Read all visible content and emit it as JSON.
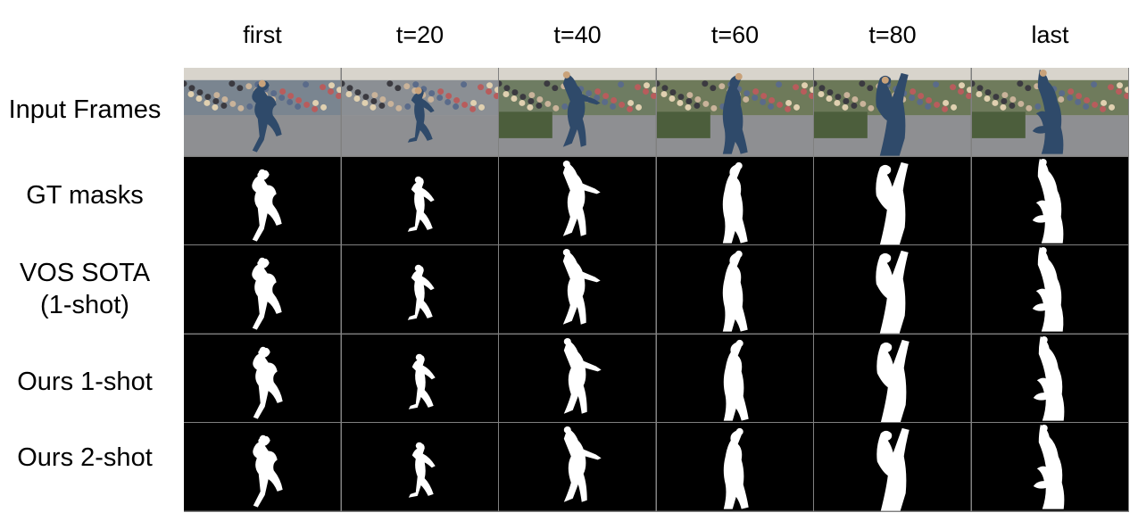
{
  "columns": [
    "first",
    "t=20",
    "t=40",
    "t=60",
    "t=80",
    "last"
  ],
  "rows": [
    {
      "label": "Input Frames",
      "kind": "photo"
    },
    {
      "label": "GT masks",
      "kind": "mask"
    },
    {
      "label": "VOS SOTA\n(1-shot)",
      "kind": "mask"
    },
    {
      "label": "Ours 1-shot",
      "kind": "mask"
    },
    {
      "label": "Ours 2-shot",
      "kind": "mask"
    }
  ],
  "colors": {
    "mask_bg": "#000000",
    "mask_fg": "#ffffff",
    "grid_line": "#808080"
  }
}
